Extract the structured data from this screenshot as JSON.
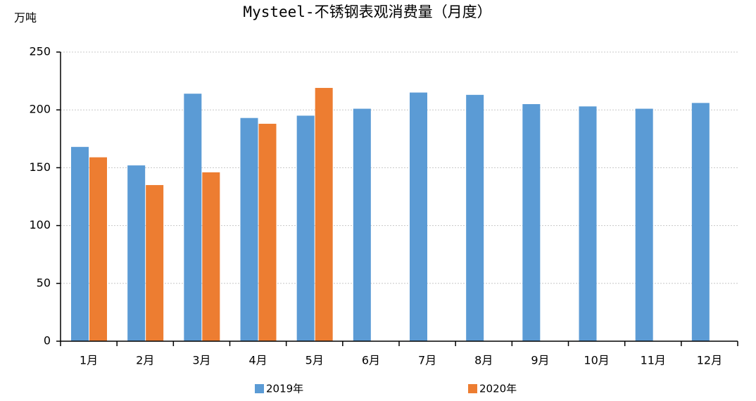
{
  "chart_data": {
    "type": "bar",
    "title": "Mysteel-不锈钢表观消费量（月度）",
    "y_label": "万吨",
    "categories": [
      "1月",
      "2月",
      "3月",
      "4月",
      "5月",
      "6月",
      "7月",
      "8月",
      "9月",
      "10月",
      "11月",
      "12月"
    ],
    "series": [
      {
        "name": "2019年",
        "color": "#5b9bd5",
        "values": [
          168,
          152,
          214,
          193,
          195,
          201,
          215,
          213,
          205,
          203,
          201,
          206
        ]
      },
      {
        "name": "2020年",
        "color": "#ed7d31",
        "values": [
          159,
          135,
          146,
          188,
          219,
          null,
          null,
          null,
          null,
          null,
          null,
          null
        ]
      }
    ],
    "ylim": [
      0,
      250
    ],
    "yticks": [
      0,
      50,
      100,
      150,
      200,
      250
    ],
    "grid": true
  }
}
